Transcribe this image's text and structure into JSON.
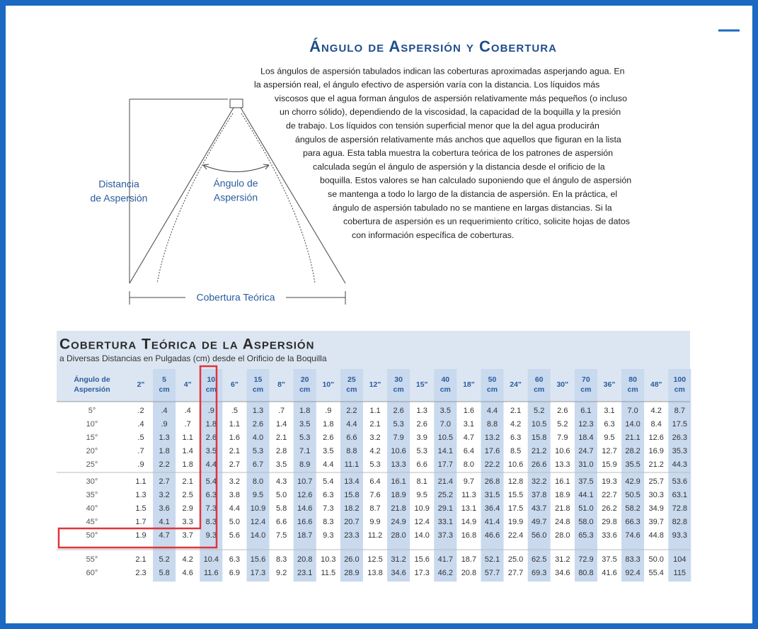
{
  "header": {
    "title": "Ángulo de Aspersión y Cobertura"
  },
  "paragraph": [
    "Los ángulos de aspersión tabulados indican las coberturas aproximadas asperjando agua. En",
    "la aspersión real, el ángulo efectivo de aspersión varía con la distancia. Los líquidos más",
    "viscosos que el agua forman ángulos de aspersión relativamente más pequeños (o incluso",
    "un chorro sólido), dependiendo de la viscosidad, la capacidad de la boquilla y la presión",
    "de trabajo. Los líquidos con tensión superficial menor que la del agua producirán",
    "ángulos de aspersión relativamente más anchos que aquellos que figuran en la lista",
    "para agua. Esta tabla muestra la cobertura teórica de los patrones de aspersión",
    "calculada según el ángulo de aspersión y la distancia desde el orificio de la",
    "boquilla. Estos valores se han calculado suponiendo que el ángulo de aspersión",
    "se mantenga a todo lo largo de la distancia de aspersión. En la práctica, el",
    "ángulo de aspersión tabulado no se mantiene en largas distancias. Si la",
    "cobertura de aspersión es un requerimiento crítico, solicite hojas de datos",
    "con información específica de coberturas."
  ],
  "diagram": {
    "distance_label": [
      "Distancia",
      "de Aspersión"
    ],
    "angle_label": [
      "Ángulo de",
      "Aspersión"
    ],
    "coverage_label": "Cobertura Teórica"
  },
  "table": {
    "title": "Cobertura Teórica de la Aspersión",
    "subtitle": "a Diversas Distancias en Pulgadas (cm) desde el Orificio de la Boquilla",
    "columns": [
      [
        "Ángulo de",
        "Aspersión"
      ],
      [
        "2\""
      ],
      [
        "5",
        "cm"
      ],
      [
        "4\""
      ],
      [
        "10",
        "cm"
      ],
      [
        "6\""
      ],
      [
        "15",
        "cm"
      ],
      [
        "8\""
      ],
      [
        "20",
        "cm"
      ],
      [
        "10\""
      ],
      [
        "25",
        "cm"
      ],
      [
        "12\""
      ],
      [
        "30",
        "cm"
      ],
      [
        "15\""
      ],
      [
        "40",
        "cm"
      ],
      [
        "18\""
      ],
      [
        "50",
        "cm"
      ],
      [
        "24\""
      ],
      [
        "60",
        "cm"
      ],
      [
        "30\""
      ],
      [
        "70",
        "cm"
      ],
      [
        "36\""
      ],
      [
        "80",
        "cm"
      ],
      [
        "48\""
      ],
      [
        "100",
        "cm"
      ]
    ],
    "rows": [
      [
        "5°",
        ".2",
        ".4",
        ".4",
        ".9",
        ".5",
        "1.3",
        ".7",
        "1.8",
        ".9",
        "2.2",
        "1.1",
        "2.6",
        "1.3",
        "3.5",
        "1.6",
        "4.4",
        "2.1",
        "5.2",
        "2.6",
        "6.1",
        "3.1",
        "7.0",
        "4.2",
        "8.7"
      ],
      [
        "10°",
        ".4",
        ".9",
        ".7",
        "1.8",
        "1.1",
        "2.6",
        "1.4",
        "3.5",
        "1.8",
        "4.4",
        "2.1",
        "5.3",
        "2.6",
        "7.0",
        "3.1",
        "8.8",
        "4.2",
        "10.5",
        "5.2",
        "12.3",
        "6.3",
        "14.0",
        "8.4",
        "17.5"
      ],
      [
        "15°",
        ".5",
        "1.3",
        "1.1",
        "2.6",
        "1.6",
        "4.0",
        "2.1",
        "5.3",
        "2.6",
        "6.6",
        "3.2",
        "7.9",
        "3.9",
        "10.5",
        "4.7",
        "13.2",
        "6.3",
        "15.8",
        "7.9",
        "18.4",
        "9.5",
        "21.1",
        "12.6",
        "26.3"
      ],
      [
        "20°",
        ".7",
        "1.8",
        "1.4",
        "3.5",
        "2.1",
        "5.3",
        "2.8",
        "7.1",
        "3.5",
        "8.8",
        "4.2",
        "10.6",
        "5.3",
        "14.1",
        "6.4",
        "17.6",
        "8.5",
        "21.2",
        "10.6",
        "24.7",
        "12.7",
        "28.2",
        "16.9",
        "35.3"
      ],
      [
        "25°",
        ".9",
        "2.2",
        "1.8",
        "4.4",
        "2.7",
        "6.7",
        "3.5",
        "8.9",
        "4.4",
        "11.1",
        "5.3",
        "13.3",
        "6.6",
        "17.7",
        "8.0",
        "22.2",
        "10.6",
        "26.6",
        "13.3",
        "31.0",
        "15.9",
        "35.5",
        "21.2",
        "44.3"
      ],
      [
        "30°",
        "1.1",
        "2.7",
        "2.1",
        "5.4",
        "3.2",
        "8.0",
        "4.3",
        "10.7",
        "5.4",
        "13.4",
        "6.4",
        "16.1",
        "8.1",
        "21.4",
        "9.7",
        "26.8",
        "12.8",
        "32.2",
        "16.1",
        "37.5",
        "19.3",
        "42.9",
        "25.7",
        "53.6"
      ],
      [
        "35°",
        "1.3",
        "3.2",
        "2.5",
        "6.3",
        "3.8",
        "9.5",
        "5.0",
        "12.6",
        "6.3",
        "15.8",
        "7.6",
        "18.9",
        "9.5",
        "25.2",
        "11.3",
        "31.5",
        "15.5",
        "37.8",
        "18.9",
        "44.1",
        "22.7",
        "50.5",
        "30.3",
        "63.1"
      ],
      [
        "40°",
        "1.5",
        "3.6",
        "2.9",
        "7.3",
        "4.4",
        "10.9",
        "5.8",
        "14.6",
        "7.3",
        "18.2",
        "8.7",
        "21.8",
        "10.9",
        "29.1",
        "13.1",
        "36.4",
        "17.5",
        "43.7",
        "21.8",
        "51.0",
        "26.2",
        "58.2",
        "34.9",
        "72.8"
      ],
      [
        "45°",
        "1.7",
        "4.1",
        "3.3",
        "8.3",
        "5.0",
        "12.4",
        "6.6",
        "16.6",
        "8.3",
        "20.7",
        "9.9",
        "24.9",
        "12.4",
        "33.1",
        "14.9",
        "41.4",
        "19.9",
        "49.7",
        "24.8",
        "58.0",
        "29.8",
        "66.3",
        "39.7",
        "82.8"
      ],
      [
        "50°",
        "1.9",
        "4.7",
        "3.7",
        "9.3",
        "5.6",
        "14.0",
        "7.5",
        "18.7",
        "9.3",
        "23.3",
        "11.2",
        "28.0",
        "14.0",
        "37.3",
        "16.8",
        "46.6",
        "22.4",
        "56.0",
        "28.0",
        "65.3",
        "33.6",
        "74.6",
        "44.8",
        "93.3"
      ],
      [
        "55°",
        "2.1",
        "5.2",
        "4.2",
        "10.4",
        "6.3",
        "15.6",
        "8.3",
        "20.8",
        "10.3",
        "26.0",
        "12.5",
        "31.2",
        "15.6",
        "41.7",
        "18.7",
        "52.1",
        "25.0",
        "62.5",
        "31.2",
        "72.9",
        "37.5",
        "83.3",
        "50.0",
        "104"
      ],
      [
        "60°",
        "2.3",
        "5.8",
        "4.6",
        "11.6",
        "6.9",
        "17.3",
        "9.2",
        "23.1",
        "11.5",
        "28.9",
        "13.8",
        "34.6",
        "17.3",
        "46.2",
        "20.8",
        "57.7",
        "27.7",
        "69.3",
        "34.6",
        "80.8",
        "41.6",
        "92.4",
        "55.4",
        "115"
      ]
    ]
  }
}
